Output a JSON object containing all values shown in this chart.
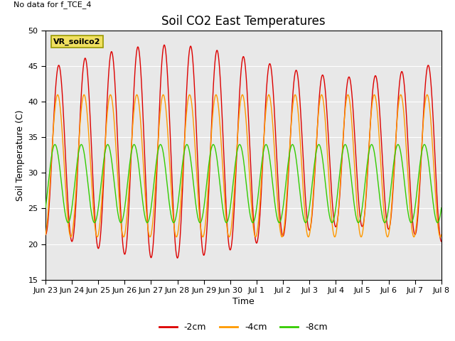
{
  "title": "Soil CO2 East Temperatures",
  "no_data_text": "No data for f_TCE_4",
  "legend_box_text": "VR_soilco2",
  "xlabel": "Time",
  "ylabel": "Soil Temperature (C)",
  "ylim": [
    15,
    50
  ],
  "yticks": [
    15,
    20,
    25,
    30,
    35,
    40,
    45,
    50
  ],
  "xtick_labels": [
    "Jun 23",
    "Jun 24",
    "Jun 25",
    "Jun 26",
    "Jun 27",
    "Jun 28",
    "Jun 29",
    "Jun 30",
    "Jul 1",
    "Jul 2",
    "Jul 3",
    "Jul 4",
    "Jul 5",
    "Jul 6",
    "Jul 7",
    "Jul 8"
  ],
  "line_colors": {
    "2cm": "#dd0000",
    "4cm": "#ff9900",
    "8cm": "#33cc00"
  },
  "legend_labels": [
    "-2cm",
    "-4cm",
    "-8cm"
  ],
  "legend_colors": [
    "#dd0000",
    "#ff9900",
    "#33cc00"
  ],
  "plot_bg_color": "#e8e8e8",
  "fig_bg_color": "#ffffff",
  "title_fontsize": 12,
  "axis_label_fontsize": 9,
  "tick_fontsize": 8,
  "n_days": 15,
  "mean_2cm": 33.0,
  "amp_2cm": 15.0,
  "mean_4cm": 31.0,
  "amp_4cm": 10.0,
  "phase_4cm": 0.25,
  "mean_8cm": 28.5,
  "amp_8cm": 5.5,
  "phase_8cm": 0.9
}
